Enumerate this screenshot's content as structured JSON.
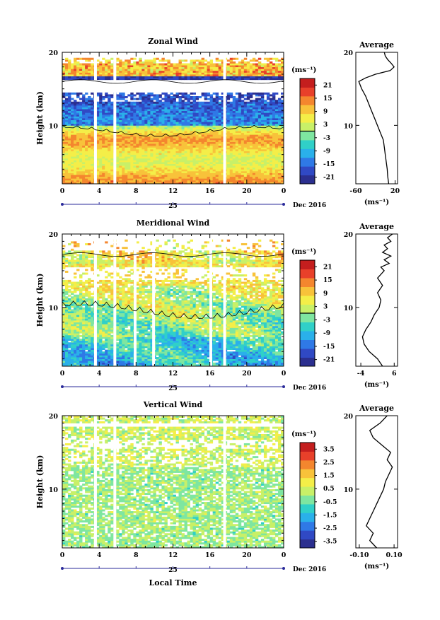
{
  "chart_data": [
    {
      "type": "heatmap",
      "title": "Zonal Wind",
      "xlabel": "",
      "ylabel": "Height (km)",
      "x_ticks": [
        "0",
        "4",
        "8",
        "12",
        "16",
        "20",
        "0"
      ],
      "y_ticks": [
        "20",
        "10"
      ],
      "xlim": [
        0,
        24
      ],
      "ylim": [
        2,
        20
      ],
      "date_mark": "25",
      "date_label": "Dec 2016",
      "colorbar": {
        "unit": "(ms⁻¹)",
        "labels": [
          "21",
          "15",
          "9",
          "3",
          "-3",
          "-9",
          "-15",
          "-21"
        ],
        "range": [
          -24,
          24
        ],
        "zero_line": true
      },
      "data_gaps_hours": [
        3.6,
        5.7,
        17.6
      ],
      "average_profile": {
        "title": "Average",
        "x_ticks": [
          "-60",
          "20"
        ],
        "xlim": [
          -60,
          25
        ],
        "xlabel": "(ms⁻¹)",
        "y_ticks": [
          "20",
          "10"
        ],
        "points": [
          [
            7,
            2
          ],
          [
            5,
            3
          ],
          [
            4,
            4
          ],
          [
            2,
            5
          ],
          [
            0,
            6
          ],
          [
            -2,
            7
          ],
          [
            -4,
            8
          ],
          [
            -10,
            9
          ],
          [
            -16,
            10
          ],
          [
            -22,
            11
          ],
          [
            -28,
            12
          ],
          [
            -34,
            13
          ],
          [
            -40,
            14
          ],
          [
            -48,
            15
          ],
          [
            -54,
            16
          ],
          [
            -40,
            16.5
          ],
          [
            -20,
            17
          ],
          [
            10,
            17.5
          ],
          [
            18,
            18
          ],
          [
            12,
            18.5
          ],
          [
            5,
            19
          ],
          [
            0,
            19.5
          ],
          [
            -2,
            20
          ]
        ]
      }
    },
    {
      "type": "heatmap",
      "title": "Meridional Wind",
      "xlabel": "",
      "ylabel": "Height (km)",
      "x_ticks": [
        "0",
        "4",
        "8",
        "12",
        "16",
        "20",
        "0"
      ],
      "y_ticks": [
        "20",
        "10"
      ],
      "xlim": [
        0,
        24
      ],
      "ylim": [
        2,
        20
      ],
      "date_mark": "25",
      "date_label": "Dec 2016",
      "colorbar": {
        "unit": "(ms⁻¹)",
        "labels": [
          "21",
          "15",
          "9",
          "3",
          "-3",
          "-9",
          "-15",
          "-21"
        ],
        "range": [
          -24,
          24
        ],
        "zero_line": true
      },
      "data_gaps_hours": [
        3.6,
        5.7,
        7.9,
        9.9,
        16.1,
        17.6
      ],
      "average_profile": {
        "title": "Average",
        "x_ticks": [
          "-4",
          "6"
        ],
        "xlim": [
          -5.5,
          7
        ],
        "xlabel": "(ms⁻¹)",
        "y_ticks": [
          "20",
          "10"
        ],
        "points": [
          [
            2.5,
            2
          ],
          [
            1,
            3
          ],
          [
            -1.5,
            4
          ],
          [
            -3,
            5
          ],
          [
            -3.5,
            6
          ],
          [
            -2.5,
            7
          ],
          [
            -1,
            8
          ],
          [
            0,
            9
          ],
          [
            1.5,
            10
          ],
          [
            2,
            11
          ],
          [
            1,
            12
          ],
          [
            2.5,
            13
          ],
          [
            1,
            14
          ],
          [
            3,
            15
          ],
          [
            2,
            15.5
          ],
          [
            4.5,
            16
          ],
          [
            3,
            16.5
          ],
          [
            5,
            17
          ],
          [
            2.5,
            17.5
          ],
          [
            4,
            18
          ],
          [
            3,
            18.5
          ],
          [
            5,
            19
          ],
          [
            4,
            19.5
          ],
          [
            5.5,
            20
          ]
        ]
      }
    },
    {
      "type": "heatmap",
      "title": "Vertical Wind",
      "xlabel": "Local Time",
      "ylabel": "Height (km)",
      "x_ticks": [
        "0",
        "4",
        "8",
        "12",
        "16",
        "20",
        "0"
      ],
      "y_ticks": [
        "20",
        "10"
      ],
      "xlim": [
        0,
        24
      ],
      "ylim": [
        2,
        20
      ],
      "date_mark": "25",
      "date_label": "Dec 2016",
      "colorbar": {
        "unit": "(ms⁻¹)",
        "labels": [
          "3.5",
          "2.5",
          "1.5",
          "0.5",
          "-0.5",
          "-1.5",
          "-2.5",
          "-3.5"
        ],
        "range": [
          -4,
          4
        ],
        "zero_line": false
      },
      "data_gaps_hours": [
        3.6,
        5.7,
        17.6
      ],
      "average_profile": {
        "title": "Average",
        "x_ticks": [
          "-0.10",
          "0.10"
        ],
        "xlim": [
          -0.12,
          0.12
        ],
        "xlabel": "(ms⁻¹)",
        "y_ticks": [
          "20",
          "10"
        ],
        "points": [
          [
            0.0,
            2
          ],
          [
            -0.04,
            3
          ],
          [
            -0.02,
            4
          ],
          [
            -0.06,
            5
          ],
          [
            -0.04,
            6
          ],
          [
            -0.02,
            7
          ],
          [
            0.0,
            8
          ],
          [
            0.02,
            9
          ],
          [
            0.04,
            10
          ],
          [
            0.05,
            11
          ],
          [
            0.07,
            12
          ],
          [
            0.09,
            13
          ],
          [
            0.06,
            14
          ],
          [
            0.08,
            15
          ],
          [
            0.03,
            16
          ],
          [
            -0.02,
            17
          ],
          [
            -0.04,
            18
          ],
          [
            0.02,
            19
          ],
          [
            0.06,
            20
          ]
        ]
      }
    }
  ],
  "colors": {
    "scale": [
      "#2b2f8f",
      "#3049c4",
      "#2f79e6",
      "#2ab0ea",
      "#30d0c8",
      "#7ee6a0",
      "#c8f068",
      "#f4ee48",
      "#f8c23a",
      "#f4862e",
      "#e8402a",
      "#c41e1e"
    ],
    "gap": "#ffffff",
    "axis": "#000000",
    "time_axis": "#2a2a9a"
  }
}
